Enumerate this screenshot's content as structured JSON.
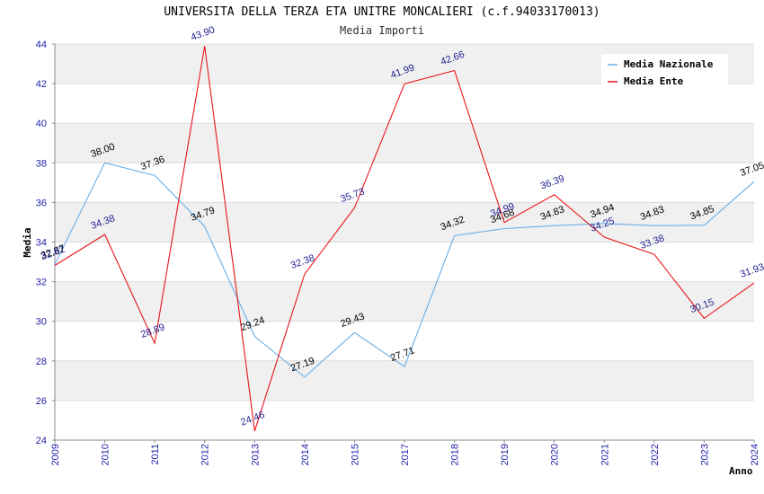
{
  "chart_data": {
    "type": "line",
    "title": "UNIVERSITA DELLA TERZA ETA UNITRE MONCALIERI (c.f.94033170013)",
    "subtitle": "Media Importi",
    "xlabel": "Anno",
    "ylabel": "Media",
    "ylim": [
      24,
      44
    ],
    "yticks": [
      "24",
      "26",
      "28",
      "30",
      "32",
      "34",
      "36",
      "38",
      "40",
      "42",
      "44"
    ],
    "categories": [
      "2009",
      "2010",
      "2011",
      "2012",
      "2013",
      "2014",
      "2015",
      "2017",
      "2018",
      "2019",
      "2020",
      "2021",
      "2022",
      "2023",
      "2024"
    ],
    "grid": true,
    "legend_position": "top-right",
    "series": [
      {
        "name": "Media Nazionale",
        "color": "#6aaee6",
        "values": [
          32.87,
          38.0,
          37.36,
          34.79,
          29.24,
          27.19,
          29.43,
          27.71,
          34.32,
          34.68,
          34.83,
          34.94,
          34.83,
          34.85,
          37.05
        ],
        "labels": [
          "32.87",
          "38.00",
          "37.36",
          "34.79",
          "29.24",
          "27.19",
          "29.43",
          "27.71",
          "34.32",
          "34.68",
          "34.83",
          "34.94",
          "34.83",
          "34.85",
          "37.05"
        ]
      },
      {
        "name": "Media Ente",
        "color": "#e8141a",
        "values": [
          32.82,
          34.38,
          28.89,
          43.9,
          24.46,
          32.38,
          35.73,
          41.99,
          42.66,
          34.99,
          36.39,
          34.25,
          33.38,
          30.15,
          31.93
        ],
        "labels": [
          "32.82",
          "34.38",
          "28.89",
          "43.90",
          "24.46",
          "32.38",
          "35.73",
          "41.99",
          "42.66",
          "34.99",
          "36.39",
          "34.25",
          "33.38",
          "30.15",
          "31.93"
        ]
      }
    ]
  }
}
